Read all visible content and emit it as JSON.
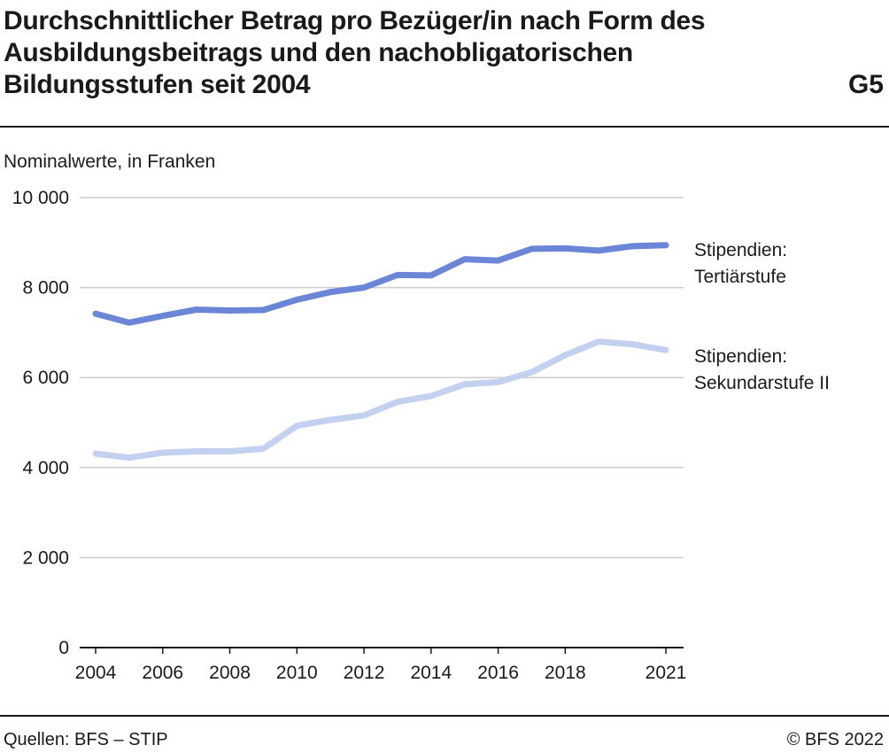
{
  "header": {
    "title": "Durchschnittlicher Betrag pro Bezüger/in nach Form des Ausbildungsbeitrags und den nachobligatorischen Bildungsstufen seit 2004",
    "code": "G5"
  },
  "footer": {
    "source": "Quellen: BFS – STIP",
    "copyright": "© BFS 2022"
  },
  "colors": {
    "tertiary": "#6b86d6",
    "secondary": "#c3d0f0",
    "grid": "#cccccc",
    "axis": "#1a1a1a"
  },
  "chart_data": {
    "type": "line",
    "subtitle": "Nominalwerte, in Franken",
    "x": [
      2004,
      2005,
      2006,
      2007,
      2008,
      2009,
      2010,
      2011,
      2012,
      2013,
      2014,
      2015,
      2016,
      2017,
      2018,
      2019,
      2020,
      2021
    ],
    "xticks": [
      2004,
      2006,
      2008,
      2010,
      2012,
      2014,
      2016,
      2018,
      2021
    ],
    "xtick_labels": [
      "2004",
      "2006",
      "2008",
      "2010",
      "2012",
      "2014",
      "2016",
      "2018",
      "2021"
    ],
    "ylim": [
      0,
      10000
    ],
    "yticks": [
      0,
      2000,
      4000,
      6000,
      8000,
      10000
    ],
    "ytick_labels": [
      "0",
      "2 000",
      "4 000",
      "6 000",
      "8 000",
      "10 000"
    ],
    "grid": true,
    "legend": "direct labels at line ends",
    "series": [
      {
        "name": "Stipendien: Tertiärstufe",
        "label_lines": [
          "Stipendien:",
          "Tertiärstufe"
        ],
        "color": "#6b86d6",
        "values": [
          7420,
          7220,
          7370,
          7510,
          7490,
          7500,
          7730,
          7900,
          8000,
          8280,
          8270,
          8630,
          8600,
          8860,
          8870,
          8820,
          8920,
          8940
        ]
      },
      {
        "name": "Stipendien: Sekundarstufe II",
        "label_lines": [
          "Stipendien:",
          "Sekundarstufe II"
        ],
        "color": "#c3d0f0",
        "values": [
          4310,
          4220,
          4330,
          4360,
          4360,
          4420,
          4930,
          5060,
          5160,
          5460,
          5590,
          5850,
          5900,
          6120,
          6500,
          6800,
          6740,
          6610
        ]
      }
    ]
  }
}
